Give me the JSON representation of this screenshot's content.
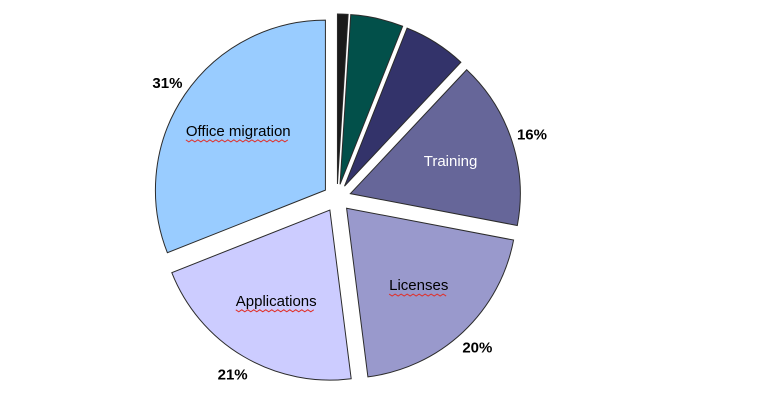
{
  "chart_data": {
    "type": "pie",
    "title": "",
    "exploded": true,
    "start_angle_deg": 0,
    "direction": "clockwise",
    "slices": [
      {
        "label": "",
        "value": 1,
        "pct_label": "",
        "color": "#1a1a1a",
        "label_color": "#000000"
      },
      {
        "label": "",
        "value": 5,
        "pct_label": "",
        "color": "#02504a",
        "label_color": "#000000"
      },
      {
        "label": "",
        "value": 6,
        "pct_label": "",
        "color": "#33336a",
        "label_color": "#000000"
      },
      {
        "label": "Training",
        "value": 16,
        "pct_label": "16%",
        "color": "#666699",
        "label_color": "#ffffff"
      },
      {
        "label": "Licenses",
        "value": 20,
        "pct_label": "20%",
        "color": "#9999cc",
        "label_color": "#000000",
        "underlined": true
      },
      {
        "label": "Applications",
        "value": 21,
        "pct_label": "21%",
        "color": "#ccccff",
        "label_color": "#000000",
        "underlined": true
      },
      {
        "label": "Office migration",
        "value": 31,
        "pct_label": "31%",
        "color": "#99ccff",
        "label_color": "#000000",
        "underlined": true
      }
    ]
  }
}
